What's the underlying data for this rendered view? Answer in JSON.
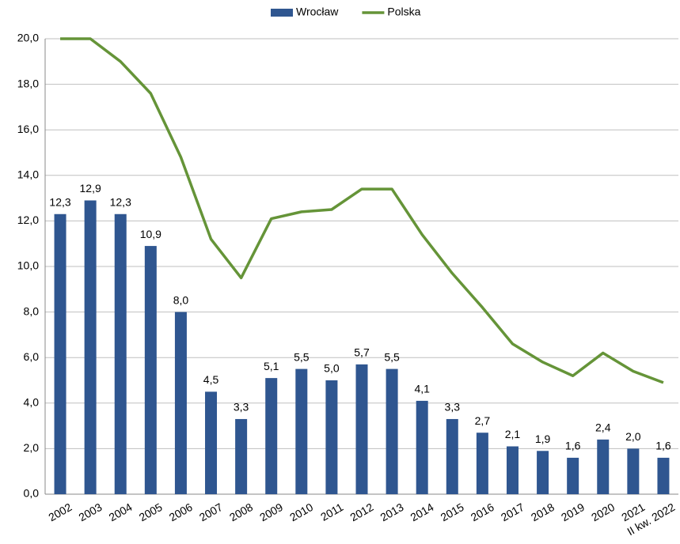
{
  "chart_data": {
    "type": "bar-line",
    "categories": [
      "2002",
      "2003",
      "2004",
      "2005",
      "2006",
      "2007",
      "2008",
      "2009",
      "2010",
      "2011",
      "2012",
      "2013",
      "2014",
      "2015",
      "2016",
      "2017",
      "2018",
      "2019",
      "2020",
      "2021",
      "II kw. 2022"
    ],
    "series": [
      {
        "name": "Wrocław",
        "type": "bar",
        "color": "#2f5690",
        "values": [
          12.3,
          12.9,
          12.3,
          10.9,
          8.0,
          4.5,
          3.3,
          5.1,
          5.5,
          5.0,
          5.7,
          5.5,
          4.1,
          3.3,
          2.7,
          2.1,
          1.9,
          1.6,
          2.4,
          2.0,
          1.6
        ],
        "value_labels": [
          "12,3",
          "12,9",
          "12,3",
          "10,9",
          "8,0",
          "4,5",
          "3,3",
          "5,1",
          "5,5",
          "5,0",
          "5,7",
          "5,5",
          "4,1",
          "3,3",
          "2,7",
          "2,1",
          "1,9",
          "1,6",
          "2,4",
          "2,0",
          "1,6"
        ]
      },
      {
        "name": "Polska",
        "type": "line",
        "color": "#659438",
        "values": [
          20.0,
          20.0,
          19.0,
          17.6,
          14.8,
          11.2,
          9.5,
          12.1,
          12.4,
          12.5,
          13.4,
          13.4,
          11.4,
          9.7,
          8.2,
          6.6,
          5.8,
          5.2,
          6.2,
          5.4,
          4.9
        ]
      }
    ],
    "ylim": [
      0,
      20
    ],
    "yticks": [
      {
        "value": 0,
        "label": "0,0"
      },
      {
        "value": 2,
        "label": "2,0"
      },
      {
        "value": 4,
        "label": "4,0"
      },
      {
        "value": 6,
        "label": "6,0"
      },
      {
        "value": 8,
        "label": "8,0"
      },
      {
        "value": 10,
        "label": "10,0"
      },
      {
        "value": 12,
        "label": "12,0"
      },
      {
        "value": 14,
        "label": "14,0"
      },
      {
        "value": 16,
        "label": "16,0"
      },
      {
        "value": 18,
        "label": "18,0"
      },
      {
        "value": 20,
        "label": "20,0"
      }
    ],
    "grid": true,
    "legend": "top"
  }
}
